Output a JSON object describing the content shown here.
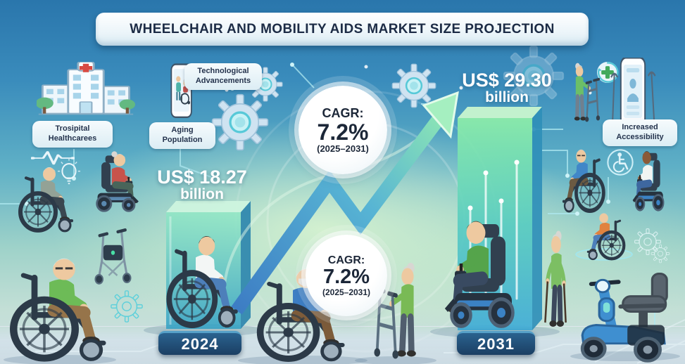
{
  "title": "WHEELCHAIR AND MOBILITY AIDS MARKET SIZE PROJECTION",
  "factors": {
    "hospital": "Trosipital Healthcarees",
    "aging": "Aging Population",
    "tech": "Technological Advancements",
    "access": "Increased Accessibility"
  },
  "cagr_top": {
    "prefix": "CAGR:",
    "value": "7.2%",
    "period": "(2025–2031)"
  },
  "cagr_bottom": {
    "prefix": "CAGR:",
    "value": "7.2%",
    "period": "(2025–2031)"
  },
  "market_2024": {
    "amount": "US$ 18.27",
    "unit": "billion"
  },
  "market_2031": {
    "amount": "US$ 29.30",
    "unit": "billion"
  },
  "years": {
    "start": "2024",
    "end": "2031"
  },
  "colors": {
    "navy": "#1d2e4e",
    "accent_teal": "#58c9d8",
    "arrow_blue": "#3d7dc4",
    "arrow_green": "#93ecb0",
    "bar_2024_top": "#8fe8c4",
    "bar_2024_bottom": "#2f9fc4",
    "bar_2031_top": "#8ff0a8",
    "bar_2031_bottom": "#3aa9d6"
  },
  "icons": [
    "hospital-icon",
    "telehealth-phone-icon",
    "gear-icon",
    "ecg-pulse-icon",
    "lightbulb-icon",
    "health-plus-renew-icon",
    "accessibility-symbol-icon",
    "accessibility-app-phone-icon"
  ],
  "chart_data": {
    "type": "bar",
    "title": "Wheelchair and Mobility Aids Market Size Projection",
    "categories": [
      "2024",
      "2031"
    ],
    "values": [
      18.27,
      29.3
    ],
    "unit": "US$ billion",
    "value_labels": [
      "US$ 18.27 billion",
      "US$ 29.30 billion"
    ],
    "cagr": "7.2%",
    "cagr_period": "2025–2031",
    "annotations": [
      "CAGR: 7.2% (2025–2031)",
      "CAGR: 7.2% (2025–2031)"
    ],
    "growth_factors": [
      "Trosipital Healthcarees",
      "Aging Population",
      "Technological Advancements",
      "Increased Accessibility"
    ]
  }
}
